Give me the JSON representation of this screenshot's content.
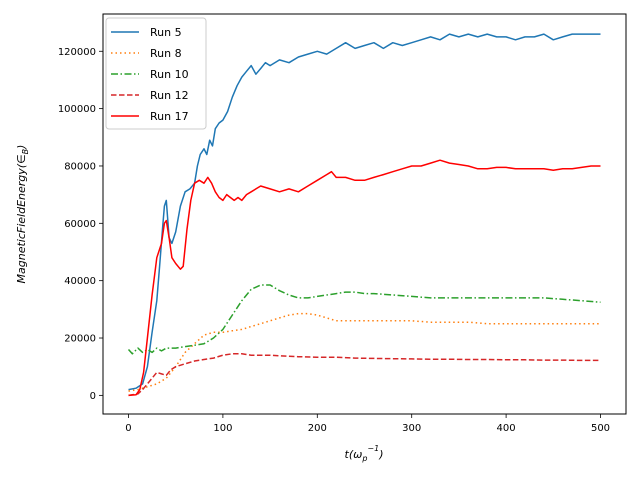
{
  "chart_data": {
    "type": "line",
    "title": "",
    "xlabel_main": "t(ω",
    "xlabel_sub": "p",
    "xlabel_sup": "−1",
    "xlabel_end": ")",
    "ylabel": "MagneticFieldEnergy(∈",
    "ylabel_sub": "B",
    "ylabel_end": ")",
    "xlim": [
      -27,
      527
    ],
    "ylim": [
      -6500,
      133000
    ],
    "xticks": [
      0,
      100,
      200,
      300,
      400,
      500
    ],
    "yticks": [
      0,
      20000,
      40000,
      60000,
      80000,
      100000,
      120000
    ],
    "legend_position": "upper left",
    "series": [
      {
        "name": "Run 5",
        "color": "#1f77b4",
        "dash": "",
        "points": [
          [
            0,
            2000
          ],
          [
            8,
            2500
          ],
          [
            15,
            4000
          ],
          [
            20,
            10000
          ],
          [
            25,
            22000
          ],
          [
            30,
            33000
          ],
          [
            33,
            45000
          ],
          [
            36,
            58000
          ],
          [
            38,
            66000
          ],
          [
            40,
            68000
          ],
          [
            43,
            55000
          ],
          [
            46,
            53000
          ],
          [
            50,
            57000
          ],
          [
            55,
            66000
          ],
          [
            60,
            71000
          ],
          [
            65,
            72000
          ],
          [
            70,
            74000
          ],
          [
            73,
            80000
          ],
          [
            76,
            84000
          ],
          [
            80,
            86000
          ],
          [
            83,
            84000
          ],
          [
            86,
            89000
          ],
          [
            89,
            87000
          ],
          [
            92,
            93000
          ],
          [
            96,
            95000
          ],
          [
            100,
            96000
          ],
          [
            105,
            99000
          ],
          [
            110,
            104000
          ],
          [
            115,
            108000
          ],
          [
            120,
            111000
          ],
          [
            125,
            113000
          ],
          [
            130,
            115000
          ],
          [
            135,
            112000
          ],
          [
            140,
            114000
          ],
          [
            145,
            116000
          ],
          [
            150,
            115000
          ],
          [
            160,
            117000
          ],
          [
            170,
            116000
          ],
          [
            180,
            118000
          ],
          [
            190,
            119000
          ],
          [
            200,
            120000
          ],
          [
            210,
            119000
          ],
          [
            220,
            121000
          ],
          [
            230,
            123000
          ],
          [
            240,
            121000
          ],
          [
            250,
            122000
          ],
          [
            260,
            123000
          ],
          [
            270,
            121000
          ],
          [
            280,
            123000
          ],
          [
            290,
            122000
          ],
          [
            300,
            123000
          ],
          [
            310,
            124000
          ],
          [
            320,
            125000
          ],
          [
            330,
            124000
          ],
          [
            340,
            126000
          ],
          [
            350,
            125000
          ],
          [
            360,
            126000
          ],
          [
            370,
            125000
          ],
          [
            380,
            126000
          ],
          [
            390,
            125000
          ],
          [
            400,
            125000
          ],
          [
            410,
            124000
          ],
          [
            420,
            125000
          ],
          [
            430,
            125000
          ],
          [
            440,
            126000
          ],
          [
            450,
            124000
          ],
          [
            460,
            125000
          ],
          [
            470,
            126000
          ],
          [
            480,
            126000
          ],
          [
            490,
            126000
          ],
          [
            500,
            126000
          ]
        ]
      },
      {
        "name": "Run 8",
        "color": "#ff7f0e",
        "dash": "1.5,3",
        "points": [
          [
            0,
            1500
          ],
          [
            10,
            2000
          ],
          [
            20,
            3000
          ],
          [
            30,
            4000
          ],
          [
            40,
            6000
          ],
          [
            50,
            10000
          ],
          [
            60,
            15000
          ],
          [
            70,
            18000
          ],
          [
            80,
            21000
          ],
          [
            90,
            22000
          ],
          [
            100,
            22000
          ],
          [
            110,
            22500
          ],
          [
            120,
            23000
          ],
          [
            130,
            24000
          ],
          [
            140,
            25000
          ],
          [
            150,
            26000
          ],
          [
            160,
            27000
          ],
          [
            170,
            28000
          ],
          [
            180,
            28500
          ],
          [
            190,
            28500
          ],
          [
            200,
            28000
          ],
          [
            210,
            27000
          ],
          [
            220,
            26000
          ],
          [
            230,
            26000
          ],
          [
            240,
            26000
          ],
          [
            260,
            26000
          ],
          [
            280,
            26000
          ],
          [
            300,
            26000
          ],
          [
            320,
            25500
          ],
          [
            340,
            25500
          ],
          [
            360,
            25500
          ],
          [
            380,
            25000
          ],
          [
            400,
            25000
          ],
          [
            420,
            25000
          ],
          [
            440,
            25000
          ],
          [
            460,
            25000
          ],
          [
            480,
            25000
          ],
          [
            500,
            25000
          ]
        ]
      },
      {
        "name": "Run 10",
        "color": "#2ca02c",
        "dash": "7,2.5,1.5,2.5",
        "points": [
          [
            0,
            16000
          ],
          [
            4,
            14500
          ],
          [
            10,
            16500
          ],
          [
            15,
            15000
          ],
          [
            20,
            16000
          ],
          [
            25,
            15000
          ],
          [
            30,
            16500
          ],
          [
            35,
            15500
          ],
          [
            40,
            16500
          ],
          [
            50,
            16500
          ],
          [
            60,
            17000
          ],
          [
            70,
            17500
          ],
          [
            80,
            18000
          ],
          [
            90,
            20000
          ],
          [
            100,
            23000
          ],
          [
            110,
            28000
          ],
          [
            120,
            33000
          ],
          [
            130,
            37000
          ],
          [
            140,
            38500
          ],
          [
            150,
            38500
          ],
          [
            160,
            36500
          ],
          [
            170,
            35000
          ],
          [
            180,
            34000
          ],
          [
            190,
            34000
          ],
          [
            200,
            34500
          ],
          [
            210,
            35000
          ],
          [
            220,
            35500
          ],
          [
            230,
            36000
          ],
          [
            240,
            36000
          ],
          [
            250,
            35500
          ],
          [
            260,
            35500
          ],
          [
            280,
            35000
          ],
          [
            300,
            34500
          ],
          [
            320,
            34000
          ],
          [
            340,
            34000
          ],
          [
            360,
            34000
          ],
          [
            380,
            34000
          ],
          [
            400,
            34000
          ],
          [
            420,
            34000
          ],
          [
            440,
            34000
          ],
          [
            460,
            33500
          ],
          [
            480,
            33000
          ],
          [
            500,
            32500
          ]
        ]
      },
      {
        "name": "Run 12",
        "color": "#d62728",
        "dash": "5.5,2.5",
        "points": [
          [
            0,
            0
          ],
          [
            10,
            500
          ],
          [
            15,
            2000
          ],
          [
            20,
            4000
          ],
          [
            25,
            6000
          ],
          [
            30,
            8000
          ],
          [
            35,
            7500
          ],
          [
            40,
            7000
          ],
          [
            45,
            9000
          ],
          [
            50,
            10000
          ],
          [
            60,
            11000
          ],
          [
            70,
            12000
          ],
          [
            80,
            12500
          ],
          [
            90,
            13000
          ],
          [
            100,
            14000
          ],
          [
            110,
            14500
          ],
          [
            120,
            14500
          ],
          [
            130,
            14000
          ],
          [
            140,
            14000
          ],
          [
            150,
            14000
          ],
          [
            160,
            13800
          ],
          [
            180,
            13500
          ],
          [
            200,
            13300
          ],
          [
            220,
            13300
          ],
          [
            240,
            13000
          ],
          [
            260,
            12900
          ],
          [
            280,
            12800
          ],
          [
            300,
            12700
          ],
          [
            320,
            12600
          ],
          [
            340,
            12600
          ],
          [
            360,
            12500
          ],
          [
            380,
            12500
          ],
          [
            400,
            12400
          ],
          [
            420,
            12400
          ],
          [
            440,
            12300
          ],
          [
            460,
            12300
          ],
          [
            480,
            12200
          ],
          [
            500,
            12200
          ]
        ]
      },
      {
        "name": "Run 17",
        "color": "#ff0000",
        "dash": "",
        "points": [
          [
            0,
            0
          ],
          [
            8,
            200
          ],
          [
            12,
            2000
          ],
          [
            16,
            8000
          ],
          [
            20,
            20000
          ],
          [
            25,
            35000
          ],
          [
            30,
            48000
          ],
          [
            35,
            53000
          ],
          [
            38,
            60000
          ],
          [
            40,
            61000
          ],
          [
            43,
            55000
          ],
          [
            46,
            48000
          ],
          [
            50,
            46000
          ],
          [
            55,
            44000
          ],
          [
            58,
            45000
          ],
          [
            62,
            58000
          ],
          [
            66,
            68000
          ],
          [
            70,
            74000
          ],
          [
            75,
            75000
          ],
          [
            80,
            74000
          ],
          [
            84,
            76000
          ],
          [
            88,
            74000
          ],
          [
            92,
            71000
          ],
          [
            96,
            69000
          ],
          [
            100,
            68000
          ],
          [
            104,
            70000
          ],
          [
            108,
            69000
          ],
          [
            112,
            68000
          ],
          [
            116,
            69000
          ],
          [
            120,
            68000
          ],
          [
            125,
            70000
          ],
          [
            130,
            71000
          ],
          [
            135,
            72000
          ],
          [
            140,
            73000
          ],
          [
            150,
            72000
          ],
          [
            160,
            71000
          ],
          [
            170,
            72000
          ],
          [
            180,
            71000
          ],
          [
            190,
            73000
          ],
          [
            200,
            75000
          ],
          [
            210,
            77000
          ],
          [
            215,
            78000
          ],
          [
            220,
            76000
          ],
          [
            230,
            76000
          ],
          [
            240,
            75000
          ],
          [
            250,
            75000
          ],
          [
            260,
            76000
          ],
          [
            270,
            77000
          ],
          [
            280,
            78000
          ],
          [
            290,
            79000
          ],
          [
            300,
            80000
          ],
          [
            310,
            80000
          ],
          [
            320,
            81000
          ],
          [
            330,
            82000
          ],
          [
            340,
            81000
          ],
          [
            350,
            80500
          ],
          [
            360,
            80000
          ],
          [
            370,
            79000
          ],
          [
            380,
            79000
          ],
          [
            390,
            79500
          ],
          [
            400,
            79500
          ],
          [
            410,
            79000
          ],
          [
            420,
            79000
          ],
          [
            430,
            79000
          ],
          [
            440,
            79000
          ],
          [
            450,
            78500
          ],
          [
            460,
            79000
          ],
          [
            470,
            79000
          ],
          [
            480,
            79500
          ],
          [
            490,
            80000
          ],
          [
            500,
            80000
          ]
        ]
      }
    ]
  }
}
